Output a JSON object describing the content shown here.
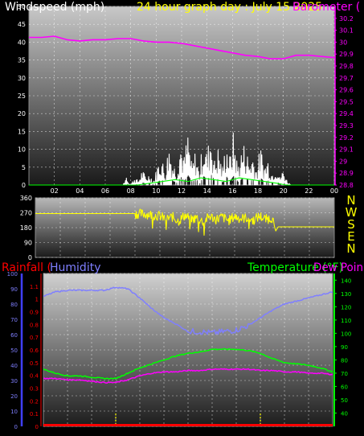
{
  "title": "24 hour graph day : July 15 2025",
  "colors": {
    "wind": "#ffffff",
    "gust": "#00ff00",
    "barometer": "#ff00ff",
    "direction": "#ffff00",
    "humidity": "#7f7fff",
    "temperature": "#00ff00",
    "dewpoint": "#ff00ff",
    "rain": "#ff0000",
    "rain_axis": "#3f3fff",
    "grid": "#ffffff"
  },
  "chart_data": [
    {
      "type": "line",
      "id": "wind_baro",
      "left_label": "Windspeed (mph)",
      "right_label": "Barometer (",
      "x_ticks": [
        "02",
        "04",
        "06",
        "08",
        "10",
        "12",
        "14",
        "16",
        "18",
        "20",
        "22",
        "00"
      ],
      "xlim": [
        0,
        24
      ],
      "ylim_left": [
        0,
        50
      ],
      "y_ticks_left": [
        0,
        5,
        10,
        15,
        20,
        25,
        30,
        35,
        40,
        45,
        50
      ],
      "ylim_right": [
        28.8,
        30.3
      ],
      "y_ticks_right": [
        "28.8",
        "28.9",
        "29",
        "29.1",
        "29.2",
        "29.3",
        "29.4",
        "29.5",
        "29.6",
        "29.7",
        "29.8",
        "29.9",
        "30",
        "30.1",
        "30.2"
      ],
      "series": [
        {
          "key": "wind",
          "axis": "left",
          "style": "spiky",
          "x": [
            0,
            6.4,
            7.4,
            7.7,
            7.8,
            8.0,
            8.3,
            8.6,
            8.9,
            9.2,
            9.5,
            9.8,
            10.1,
            10.4,
            10.7,
            11.0,
            11.3,
            11.6,
            11.9,
            12.2,
            12.5,
            12.8,
            13.1,
            13.4,
            13.7,
            14.0,
            14.3,
            14.6,
            14.9,
            15.2,
            15.5,
            15.8,
            16.1,
            16.4,
            16.7,
            17.0,
            17.3,
            17.6,
            17.9,
            18.2,
            18.5,
            18.8,
            19.1,
            19.4,
            19.7,
            20.0,
            20.3,
            20.6,
            24
          ],
          "values": [
            0,
            0,
            0,
            3,
            1,
            0,
            2,
            1,
            4,
            2,
            3,
            1,
            5,
            8,
            3,
            11,
            6,
            4,
            12,
            7,
            14,
            5,
            9,
            3,
            13,
            8,
            15,
            6,
            10,
            4,
            12,
            7,
            14,
            5,
            9,
            11,
            6,
            8,
            4,
            10,
            5,
            7,
            3,
            6,
            2,
            4,
            1,
            0,
            0
          ]
        },
        {
          "key": "gust",
          "axis": "left",
          "x": [
            0,
            8.5,
            9.5,
            10.5,
            11.5,
            12.5,
            13.5,
            14.5,
            15.5,
            16.5,
            17.5,
            18.5,
            19.5,
            20.2,
            24
          ],
          "values": [
            0,
            0,
            0.5,
            1,
            1.5,
            1,
            2,
            1.5,
            1,
            2,
            1.5,
            1,
            0.5,
            0,
            0
          ]
        },
        {
          "key": "barometer",
          "axis": "right",
          "x": [
            0,
            1,
            2,
            3,
            4,
            5,
            6,
            7,
            8,
            9,
            10,
            11,
            12,
            13,
            14,
            15,
            16,
            17,
            18,
            19,
            20,
            21,
            22,
            23,
            24
          ],
          "values": [
            30.04,
            30.04,
            30.05,
            30.02,
            30.01,
            30.02,
            30.02,
            30.03,
            30.03,
            30.01,
            30.0,
            30.0,
            29.99,
            29.97,
            29.95,
            29.93,
            29.91,
            29.89,
            29.88,
            29.86,
            29.86,
            29.89,
            29.89,
            29.88,
            29.87
          ]
        }
      ]
    },
    {
      "type": "line",
      "id": "direction",
      "left_ticks": [
        "0",
        "90",
        "180",
        "270",
        "360"
      ],
      "ylim": [
        0,
        360
      ],
      "right_labels": [
        "N",
        "W",
        "S",
        "E",
        "N"
      ],
      "xlim": [
        0,
        24
      ],
      "series": [
        {
          "key": "direction",
          "style": "noisy",
          "x": [
            0,
            7.0,
            8.0,
            9.0,
            10.0,
            10.5,
            11.0,
            11.5,
            12.0,
            12.5,
            13.0,
            13.5,
            14.0,
            14.5,
            15.0,
            15.5,
            16.0,
            16.5,
            17.0,
            17.5,
            18.0,
            18.5,
            19.0,
            19.3,
            19.5,
            24
          ],
          "values": [
            265,
            265,
            265,
            262,
            250,
            232,
            245,
            220,
            255,
            228,
            240,
            215,
            250,
            230,
            245,
            222,
            248,
            235,
            240,
            225,
            250,
            230,
            240,
            160,
            185,
            185
          ]
        }
      ]
    },
    {
      "type": "line",
      "id": "rain_hum_temp",
      "label_rain": "Rainfall (",
      "label_humidity": "Humidity",
      "label_temperature": "Temperature (°F)",
      "label_dewpoint": "Dew Poin",
      "xlim": [
        0,
        24
      ],
      "ylim_humidity": [
        0,
        100
      ],
      "y_ticks_humidity": [
        0,
        10,
        20,
        30,
        40,
        50,
        60,
        70,
        80,
        90,
        100
      ],
      "ylim_rain": [
        0,
        1.2
      ],
      "y_ticks_rain": [
        "0",
        "0.1",
        "0.2",
        "0.3",
        "0.4",
        "0.5",
        "0.6",
        "0.7",
        "0.8",
        "0.9",
        "1",
        "1.1"
      ],
      "ylim_temp": [
        30,
        145
      ],
      "y_ticks_temp": [
        40,
        50,
        60,
        70,
        80,
        90,
        100,
        110,
        120,
        130,
        140
      ],
      "series": [
        {
          "key": "humidity",
          "axis": "humidity",
          "x": [
            0,
            1,
            2,
            3,
            4,
            5,
            6,
            7,
            8,
            9,
            10,
            11,
            12,
            13,
            14,
            15,
            16,
            17,
            18,
            19,
            20,
            21,
            22,
            23,
            24
          ],
          "values": [
            85,
            88,
            89,
            89,
            89,
            89,
            91,
            90,
            84,
            77,
            71,
            67,
            62,
            62,
            61,
            62,
            63,
            66,
            71,
            76,
            80,
            82,
            84,
            86,
            88
          ]
        },
        {
          "key": "temperature",
          "axis": "temp",
          "x": [
            0,
            1,
            2,
            3,
            4,
            5,
            6,
            7,
            8,
            9,
            10,
            11,
            12,
            13,
            14,
            15,
            16,
            17,
            18,
            19,
            20,
            21,
            22,
            23,
            24
          ],
          "values": [
            73,
            70,
            68,
            68,
            67,
            66,
            66,
            70,
            74,
            77,
            80,
            83,
            85,
            86,
            88,
            88,
            88,
            87,
            85,
            81,
            78,
            77,
            76,
            74,
            71
          ]
        },
        {
          "key": "dewpoint",
          "axis": "temp",
          "x": [
            0,
            1,
            2,
            3,
            4,
            5,
            6,
            7,
            8,
            9,
            10,
            11,
            12,
            13,
            14,
            15,
            16,
            17,
            18,
            19,
            20,
            21,
            22,
            23,
            24
          ],
          "values": [
            66,
            66,
            65,
            65,
            64,
            63,
            63,
            65,
            68,
            70,
            71,
            71,
            72,
            72,
            73,
            73,
            73,
            73,
            72,
            72,
            71,
            71,
            70,
            70,
            69
          ]
        },
        {
          "key": "rain",
          "axis": "rain",
          "x": [
            0,
            24
          ],
          "values": [
            0,
            0
          ]
        }
      ]
    }
  ]
}
